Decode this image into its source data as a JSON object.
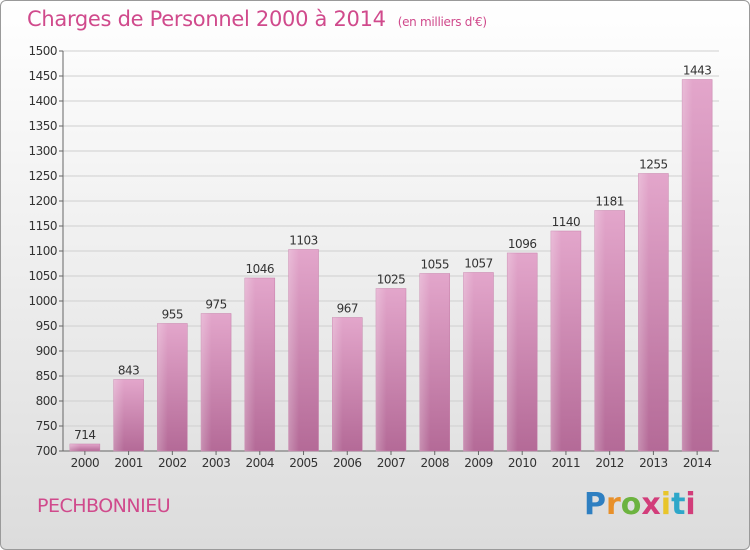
{
  "title": "Charges de Personnel 2000 à 2014",
  "subtitle": "(en milliers d'€)",
  "commune": "PECHBONNIEU",
  "logo": {
    "letters": [
      "P",
      "r",
      "o",
      "x",
      "i",
      "t",
      "i"
    ],
    "colors": [
      "#2e7fc1",
      "#e8902a",
      "#6cb33f",
      "#d23d7a",
      "#e8c52a",
      "#2ea7c9",
      "#d23d7a"
    ]
  },
  "chart_data": {
    "type": "bar",
    "categories": [
      "2000",
      "2001",
      "2002",
      "2003",
      "2004",
      "2005",
      "2006",
      "2007",
      "2008",
      "2009",
      "2010",
      "2011",
      "2012",
      "2013",
      "2014"
    ],
    "values": [
      714,
      843,
      955,
      975,
      1046,
      1103,
      967,
      1025,
      1055,
      1057,
      1096,
      1140,
      1181,
      1255,
      1443
    ],
    "ylim": [
      700,
      1500
    ],
    "yticks": [
      700,
      750,
      800,
      850,
      900,
      950,
      1000,
      1050,
      1100,
      1150,
      1200,
      1250,
      1300,
      1350,
      1400,
      1450,
      1500
    ],
    "grid": true,
    "bar_color": "#d98cbb"
  }
}
